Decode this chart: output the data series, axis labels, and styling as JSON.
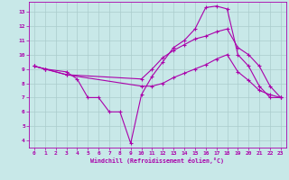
{
  "xlabel": "Windchill (Refroidissement éolien,°C)",
  "bg_color": "#c8e8e8",
  "line_color": "#aa00aa",
  "grid_color": "#aacccc",
  "xlim": [
    -0.5,
    23.5
  ],
  "ylim": [
    3.5,
    13.7
  ],
  "xticks": [
    0,
    1,
    2,
    3,
    4,
    5,
    6,
    7,
    8,
    9,
    10,
    11,
    12,
    13,
    14,
    15,
    16,
    17,
    18,
    19,
    20,
    21,
    22,
    23
  ],
  "yticks": [
    4,
    5,
    6,
    7,
    8,
    9,
    10,
    11,
    12,
    13
  ],
  "lines": [
    {
      "x": [
        0,
        1,
        3,
        4,
        5,
        6,
        7,
        8,
        9,
        10,
        11,
        12,
        13,
        14,
        15,
        16,
        17,
        18,
        19,
        20,
        21,
        22,
        23
      ],
      "y": [
        9.2,
        9.0,
        8.8,
        8.3,
        7.0,
        7.0,
        6.0,
        6.0,
        3.8,
        7.2,
        8.5,
        9.5,
        10.5,
        11.0,
        11.8,
        13.3,
        13.4,
        13.2,
        10.0,
        9.2,
        7.8,
        7.0,
        7.0
      ]
    },
    {
      "x": [
        0,
        1,
        3,
        10,
        11,
        12,
        13,
        14,
        15,
        16,
        17,
        18,
        19,
        20,
        21,
        22,
        23
      ],
      "y": [
        9.2,
        9.0,
        8.6,
        8.3,
        9.0,
        9.8,
        10.3,
        10.7,
        11.1,
        11.3,
        11.6,
        11.8,
        10.5,
        10.0,
        9.2,
        7.8,
        7.0
      ]
    },
    {
      "x": [
        0,
        1,
        3,
        10,
        11,
        12,
        13,
        14,
        15,
        16,
        17,
        18,
        19,
        20,
        21,
        22,
        23
      ],
      "y": [
        9.2,
        9.0,
        8.6,
        7.8,
        7.8,
        8.0,
        8.4,
        8.7,
        9.0,
        9.3,
        9.7,
        10.0,
        8.8,
        8.2,
        7.5,
        7.2,
        7.0
      ]
    }
  ]
}
